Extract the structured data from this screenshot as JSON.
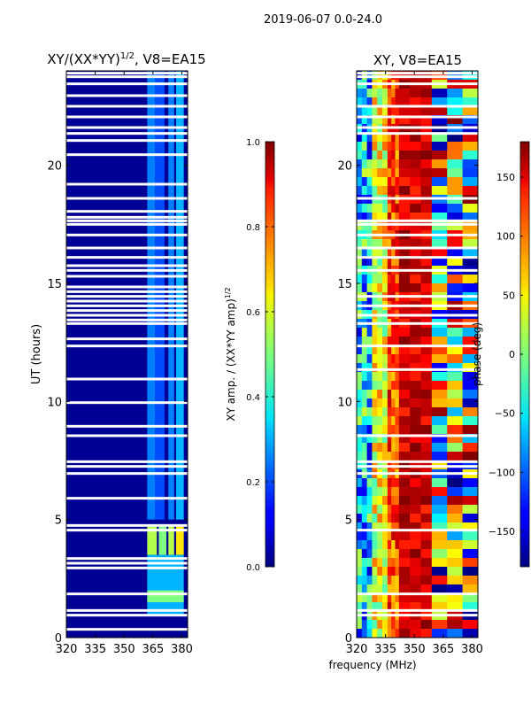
{
  "suptitle": "2019-06-07 0.0-24.0",
  "xlabel_shared": "frequency (MHz)",
  "chart_data": [
    {
      "type": "heatmap",
      "title": "XY/(XX*YY)",
      "title_sup": "1/2",
      "title_suffix": ", V8=EA15",
      "ylabel": "UT (hours)",
      "xticks": [
        320,
        335,
        350,
        365,
        380
      ],
      "yticks": [
        0,
        5,
        10,
        15,
        20
      ],
      "xlim": [
        320,
        383
      ],
      "ylim": [
        0,
        24
      ],
      "colorbar": {
        "label": "XY amp. / (XX*YY amp)",
        "label_sup": "1/2",
        "range": [
          0.0,
          1.0
        ],
        "ticks": [
          "0.0",
          "0.2",
          "0.4",
          "0.6",
          "0.8",
          "1.0"
        ],
        "colormap": "jet"
      },
      "background_value": 0.02,
      "features": [
        {
          "f": [
            362,
            366
          ],
          "t": [
            5,
            24
          ],
          "value": 0.25
        },
        {
          "f": [
            366,
            371
          ],
          "t": [
            5,
            24
          ],
          "value": 0.2
        },
        {
          "f": [
            373,
            376
          ],
          "t": [
            5,
            24
          ],
          "value": 0.25
        },
        {
          "f": [
            377,
            381
          ],
          "t": [
            5,
            24
          ],
          "value": 0.3
        },
        {
          "f": [
            362,
            367
          ],
          "t": [
            3.5,
            4.7
          ],
          "value": 0.55
        },
        {
          "f": [
            368,
            372
          ],
          "t": [
            3.5,
            4.7
          ],
          "value": 0.5
        },
        {
          "f": [
            373,
            376
          ],
          "t": [
            3.5,
            4.7
          ],
          "value": 0.55
        },
        {
          "f": [
            377,
            381
          ],
          "t": [
            3.5,
            4.7
          ],
          "value": 0.65
        },
        {
          "f": [
            362,
            381
          ],
          "t": [
            1.0,
            3.5
          ],
          "value": 0.3
        },
        {
          "f": [
            362,
            381
          ],
          "t": [
            1.5,
            2.0
          ],
          "value": 0.5
        }
      ],
      "gaps_hours": [
        0.35,
        0.95,
        1.15,
        1.85,
        2.95,
        3.15,
        3.35,
        4.55,
        4.75,
        5.9,
        6.95,
        7.25,
        7.45,
        8.55,
        8.95,
        9.95,
        10.95,
        12.35,
        12.65,
        13.3,
        13.45,
        13.65,
        13.85,
        14.05,
        14.25,
        14.45,
        14.65,
        14.85,
        15.3,
        15.55,
        15.75,
        16.1,
        16.5,
        17.05,
        17.5,
        17.65,
        17.8,
        18.05,
        18.6,
        19.2,
        20.45,
        21.05,
        21.35,
        21.6,
        22.05,
        22.5,
        22.95,
        23.45,
        23.75,
        23.9
      ]
    },
    {
      "type": "heatmap",
      "title": "XY, V8=EA15",
      "xticks": [
        320,
        335,
        350,
        365,
        380
      ],
      "yticks": [
        0,
        5,
        10,
        15,
        20
      ],
      "xlim": [
        320,
        383
      ],
      "ylim": [
        0,
        24
      ],
      "colorbar": {
        "label": "phase (deg)",
        "range": [
          -180,
          180
        ],
        "ticks": [
          "150",
          "100",
          "50",
          "0",
          "−50",
          "−100",
          "−150"
        ],
        "tick_values": [
          150,
          100,
          50,
          0,
          -50,
          -100,
          -150
        ],
        "colormap": "jet"
      },
      "frequency_bands": [
        {
          "f": [
            320,
            328
          ],
          "phase_range": [
            -150,
            30
          ]
        },
        {
          "f": [
            328,
            336
          ],
          "phase_range": [
            -20,
            100
          ]
        },
        {
          "f": [
            336,
            342
          ],
          "phase_range": [
            60,
            160
          ]
        },
        {
          "f": [
            342,
            359
          ],
          "phase_range": [
            120,
            180
          ]
        },
        {
          "f": [
            359,
            383
          ],
          "phase_range": [
            -180,
            180
          ]
        }
      ],
      "gaps_hours": [
        0.95,
        1.15,
        1.85,
        4.55,
        6.95,
        7.25,
        7.45,
        8.55,
        11.35,
        12.35,
        13.3,
        13.65,
        14.05,
        14.45,
        15.55,
        16.1,
        16.5,
        17.05,
        17.5,
        17.65,
        18.6,
        21.35,
        21.6,
        22.05,
        22.5,
        23.45,
        23.75,
        23.9
      ]
    }
  ]
}
